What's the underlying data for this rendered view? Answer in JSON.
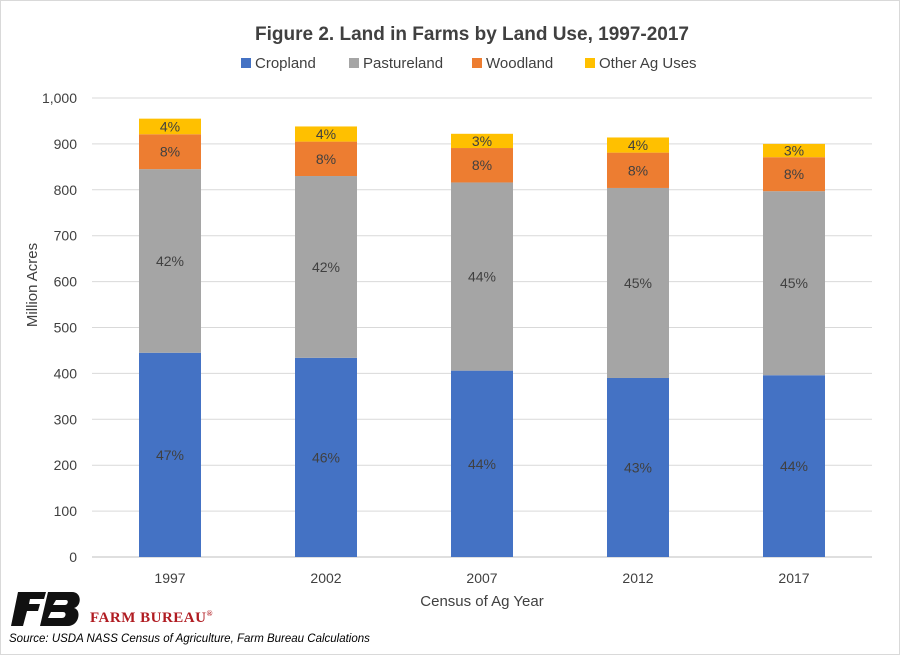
{
  "chart_data": {
    "type": "bar",
    "stacked": true,
    "title": "Figure 2. Land in Farms by Land Use, 1997-2017",
    "xlabel": "Census of Ag Year",
    "ylabel": "Million Acres",
    "ylim": [
      0,
      1000
    ],
    "yticks": [
      "0",
      "100",
      "200",
      "300",
      "400",
      "500",
      "600",
      "700",
      "800",
      "900",
      "1,000"
    ],
    "ytick_values": [
      0,
      100,
      200,
      300,
      400,
      500,
      600,
      700,
      800,
      900,
      1000
    ],
    "categories": [
      "1997",
      "2002",
      "2007",
      "2012",
      "2017"
    ],
    "grid": true,
    "legend_position": "top",
    "series": [
      {
        "name": "Cropland",
        "color": "#4472c4",
        "values": [
          445,
          434,
          406,
          390,
          396
        ],
        "labels": [
          "47%",
          "46%",
          "44%",
          "43%",
          "44%"
        ]
      },
      {
        "name": "Pastureland",
        "color": "#a5a5a5",
        "values": [
          400,
          396,
          410,
          414,
          401
        ],
        "labels": [
          "42%",
          "42%",
          "44%",
          "45%",
          "45%"
        ]
      },
      {
        "name": "Woodland",
        "color": "#ed7d31",
        "values": [
          76,
          75,
          75,
          77,
          74
        ],
        "labels": [
          "8%",
          "8%",
          "8%",
          "8%",
          "8%"
        ]
      },
      {
        "name": "Other Ag Uses",
        "color": "#ffc000",
        "values": [
          34,
          33,
          31,
          33,
          29
        ],
        "labels": [
          "4%",
          "4%",
          "3%",
          "4%",
          "3%"
        ]
      }
    ]
  },
  "branding": {
    "logo_text": "FARM BUREAU",
    "logo_mark": "®",
    "logo_color": "#b01b21"
  },
  "source": "Source: USDA NASS Census of Agriculture, Farm Bureau Calculations"
}
